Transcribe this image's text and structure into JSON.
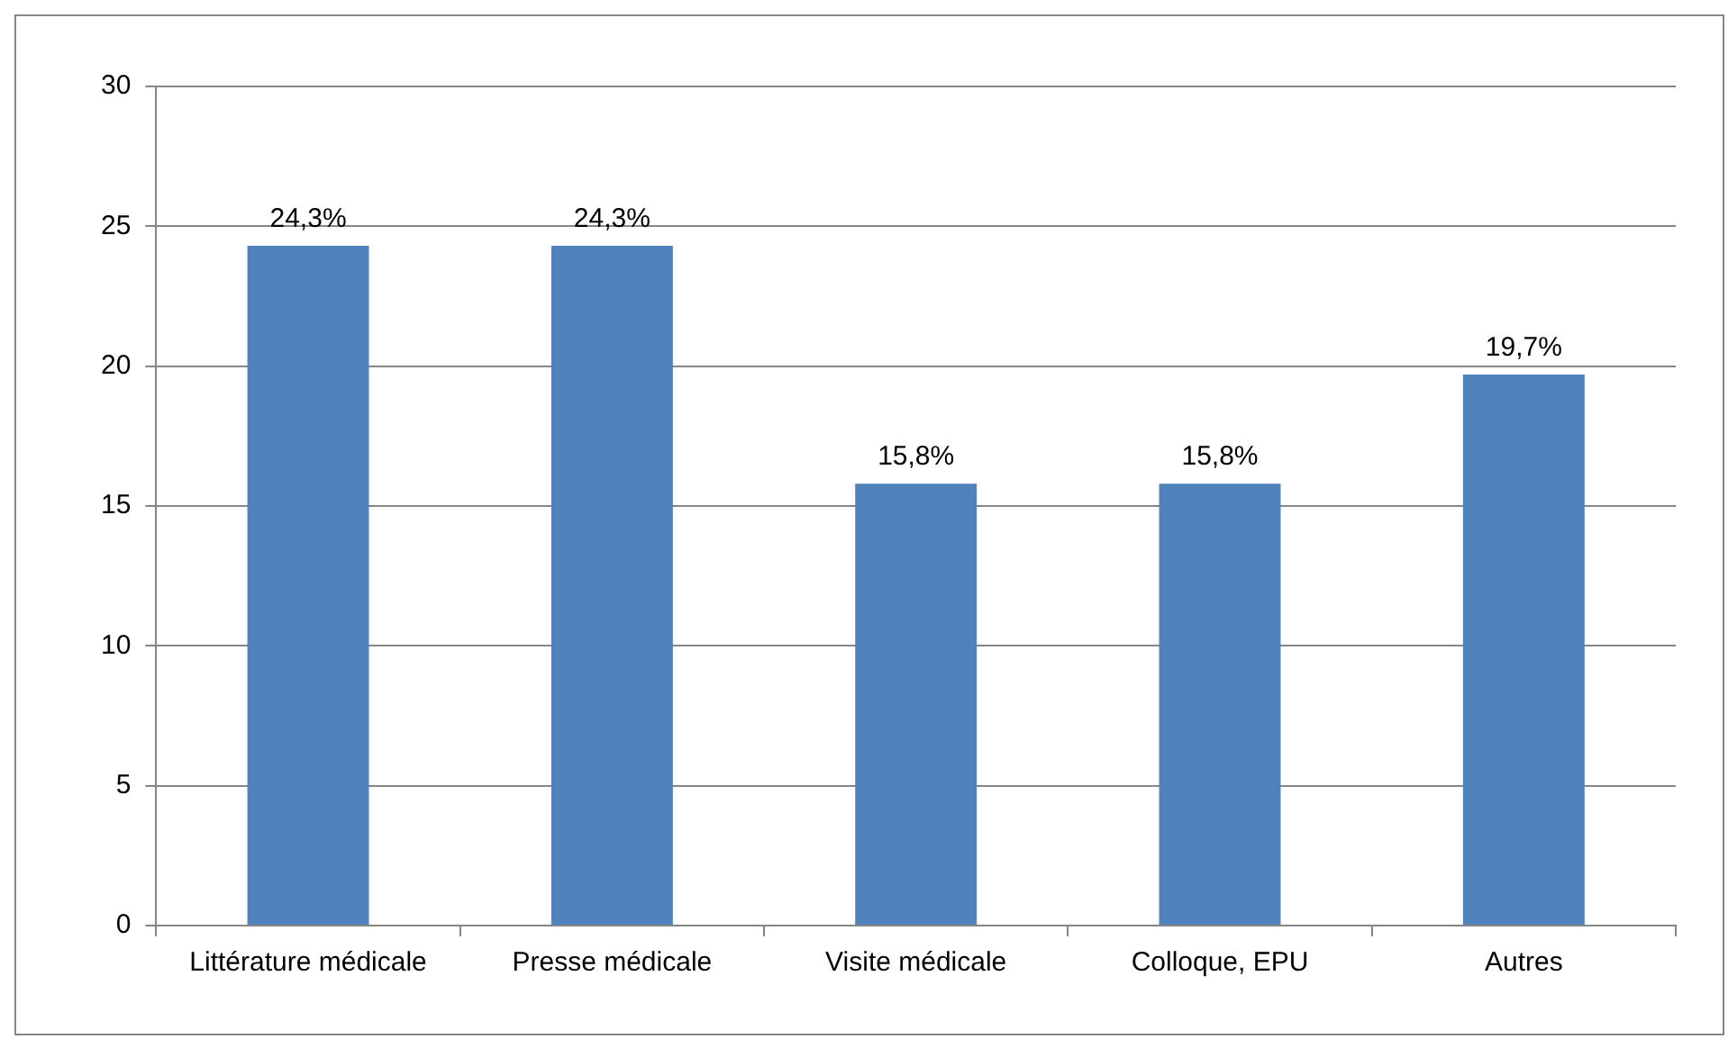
{
  "chart_data": {
    "type": "bar",
    "categories": [
      "Littérature médicale",
      "Presse médicale",
      "Visite médicale",
      "Colloque, EPU",
      "Autres"
    ],
    "values": [
      24.3,
      24.3,
      15.8,
      15.8,
      19.7
    ],
    "color": "#4f81bd",
    "value_labels": [
      "24,3%",
      "24,3%",
      "15,8%",
      "15,8%",
      "19,7%"
    ],
    "ylim": [
      0,
      30
    ],
    "yticks": [
      0,
      5,
      10,
      15,
      20,
      25,
      30
    ],
    "grid": "y",
    "legend": false
  }
}
